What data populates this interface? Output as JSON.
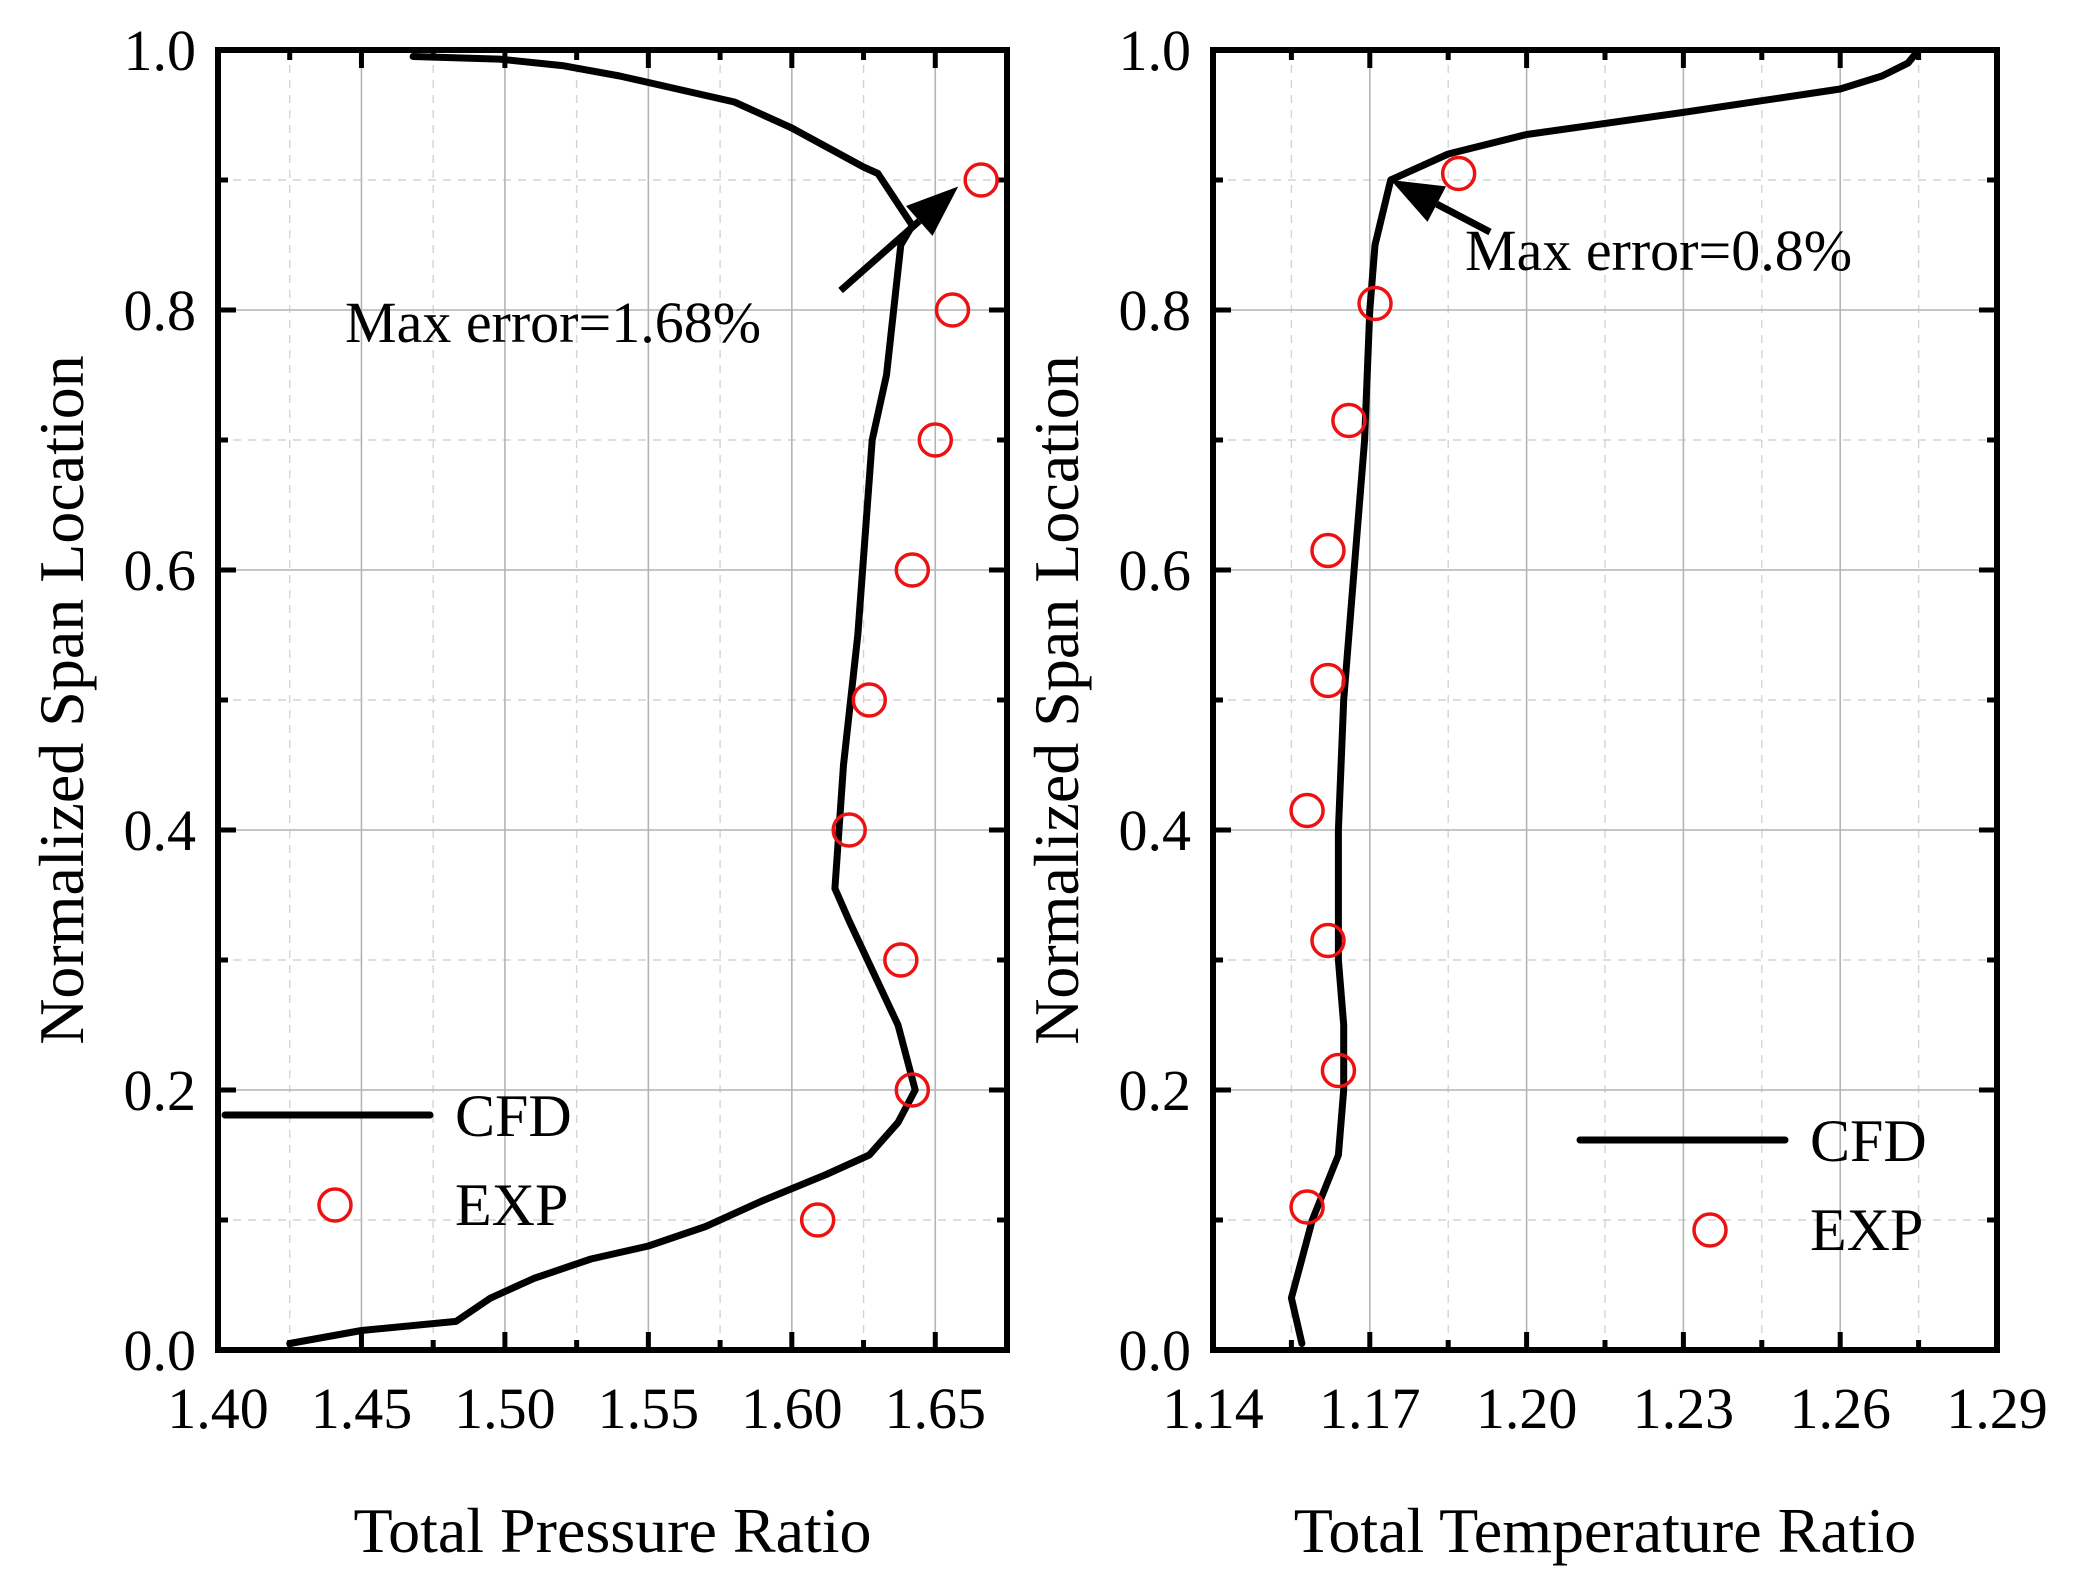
{
  "chart_data": [
    {
      "type": "line",
      "xlabel": "Total Pressure Ratio",
      "ylabel": "Normalized Span Location",
      "xlim": [
        1.4,
        1.675
      ],
      "ylim": [
        0.0,
        1.0
      ],
      "xticks": [
        "1.40",
        "1.45",
        "1.50",
        "1.55",
        "1.60",
        "1.65"
      ],
      "yticks": [
        "0.0",
        "0.2",
        "0.4",
        "0.6",
        "0.8",
        "1.0"
      ],
      "grid": true,
      "legend_position": "bottom-left",
      "series": [
        {
          "name": "CFD",
          "style": "line",
          "x": [
            1.425,
            1.45,
            1.483,
            1.495,
            1.51,
            1.53,
            1.55,
            1.57,
            1.59,
            1.612,
            1.627,
            1.637,
            1.643,
            1.637,
            1.62,
            1.615,
            1.618,
            1.623,
            1.628,
            1.633,
            1.638,
            1.642,
            1.63,
            1.625,
            1.6,
            1.58,
            1.56,
            1.54,
            1.52,
            1.498,
            1.468
          ],
          "y": [
            0.005,
            0.015,
            0.022,
            0.04,
            0.055,
            0.07,
            0.08,
            0.095,
            0.115,
            0.135,
            0.15,
            0.175,
            0.2,
            0.25,
            0.33,
            0.355,
            0.45,
            0.55,
            0.7,
            0.75,
            0.85,
            0.865,
            0.905,
            0.91,
            0.94,
            0.96,
            0.97,
            0.98,
            0.988,
            0.993,
            0.995
          ]
        },
        {
          "name": "EXP",
          "style": "marker",
          "x": [
            1.609,
            1.642,
            1.638,
            1.62,
            1.627,
            1.642,
            1.65,
            1.656,
            1.666
          ],
          "y": [
            0.1,
            0.2,
            0.3,
            0.4,
            0.5,
            0.6,
            0.7,
            0.8,
            0.9
          ]
        }
      ],
      "annotation": {
        "text": "Max error=1.68%",
        "arrow_from": [
          1.617,
          0.815
        ],
        "arrow_to": [
          1.658,
          0.895
        ]
      }
    },
    {
      "type": "line",
      "xlabel": "Total Temperature Ratio",
      "ylabel": "Normalized Span Location",
      "xlim": [
        1.14,
        1.29
      ],
      "ylim": [
        0.0,
        1.0
      ],
      "xticks": [
        "1.14",
        "1.17",
        "1.20",
        "1.23",
        "1.26",
        "1.29"
      ],
      "yticks": [
        "0.0",
        "0.2",
        "0.4",
        "0.6",
        "0.8",
        "1.0"
      ],
      "grid": true,
      "legend_position": "bottom-right",
      "series": [
        {
          "name": "CFD",
          "style": "line",
          "x": [
            1.157,
            1.155,
            1.157,
            1.159,
            1.162,
            1.164,
            1.165,
            1.165,
            1.164,
            1.164,
            1.165,
            1.167,
            1.169,
            1.17,
            1.171,
            1.174,
            1.185,
            1.2,
            1.23,
            1.26,
            1.268,
            1.273,
            1.275
          ],
          "y": [
            0.005,
            0.04,
            0.07,
            0.1,
            0.13,
            0.15,
            0.2,
            0.25,
            0.3,
            0.4,
            0.5,
            0.6,
            0.7,
            0.8,
            0.85,
            0.9,
            0.92,
            0.935,
            0.952,
            0.97,
            0.98,
            0.99,
            1.0
          ]
        },
        {
          "name": "EXP",
          "style": "marker",
          "x": [
            1.158,
            1.164,
            1.162,
            1.158,
            1.162,
            1.162,
            1.166,
            1.171,
            1.187
          ],
          "y": [
            0.11,
            0.215,
            0.315,
            0.415,
            0.515,
            0.615,
            0.715,
            0.805,
            0.905
          ]
        }
      ],
      "annotation": {
        "text": "Max error=0.8%",
        "arrow_from": [
          1.193,
          0.86
        ],
        "arrow_to": [
          1.174,
          0.9
        ]
      }
    }
  ]
}
